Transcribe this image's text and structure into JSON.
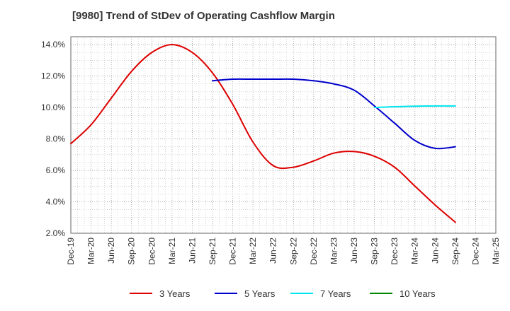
{
  "title": "[9980]  Trend of StDev of Operating Cashflow Margin",
  "chart_data": {
    "type": "line",
    "title": "[9980]  Trend of StDev of Operating Cashflow Margin",
    "xlabel": "",
    "ylabel": "",
    "x_ticks": [
      "Dec-19",
      "Mar-20",
      "Jun-20",
      "Sep-20",
      "Dec-20",
      "Mar-21",
      "Jun-21",
      "Sep-21",
      "Dec-21",
      "Mar-22",
      "Jun-22",
      "Sep-22",
      "Dec-22",
      "Mar-23",
      "Jun-23",
      "Sep-23",
      "Dec-23",
      "Mar-24",
      "Jun-24",
      "Sep-24",
      "Dec-24",
      "Mar-25"
    ],
    "y_ticks": [
      "2.0%",
      "4.0%",
      "6.0%",
      "8.0%",
      "10.0%",
      "12.0%",
      "14.0%"
    ],
    "ylim": [
      2.0,
      14.5
    ],
    "y_unit": "%",
    "grid": true,
    "legend_position": "bottom",
    "series": [
      {
        "name": "3 Years",
        "color": "#dd0000",
        "x": [
          "Dec-19",
          "Mar-20",
          "Jun-20",
          "Sep-20",
          "Dec-20",
          "Mar-21",
          "Jun-21",
          "Sep-21",
          "Dec-21",
          "Mar-22",
          "Jun-22",
          "Sep-22",
          "Dec-22",
          "Mar-23",
          "Jun-23",
          "Sep-23",
          "Dec-23",
          "Mar-24",
          "Jun-24",
          "Sep-24"
        ],
        "values": [
          7.7,
          8.9,
          10.6,
          12.3,
          13.5,
          14.0,
          13.5,
          12.2,
          10.2,
          7.8,
          6.3,
          6.2,
          6.6,
          7.1,
          7.2,
          6.9,
          6.2,
          5.0,
          3.8,
          2.7
        ]
      },
      {
        "name": "5 Years",
        "color": "#0000cc",
        "x": [
          "Sep-21",
          "Dec-21",
          "Mar-22",
          "Jun-22",
          "Sep-22",
          "Dec-22",
          "Mar-23",
          "Jun-23",
          "Sep-23",
          "Dec-23",
          "Mar-24",
          "Jun-24",
          "Sep-24"
        ],
        "values": [
          11.7,
          11.8,
          11.8,
          11.8,
          11.8,
          11.7,
          11.5,
          11.1,
          10.1,
          9.0,
          7.9,
          7.4,
          7.5
        ]
      },
      {
        "name": "7 Years",
        "color": "#00e5ee",
        "x": [
          "Sep-23",
          "Dec-23",
          "Mar-24",
          "Jun-24",
          "Sep-24"
        ],
        "values": [
          10.0,
          10.05,
          10.08,
          10.1,
          10.1
        ]
      },
      {
        "name": "10 Years",
        "color": "#008800",
        "x": [],
        "values": []
      }
    ]
  }
}
